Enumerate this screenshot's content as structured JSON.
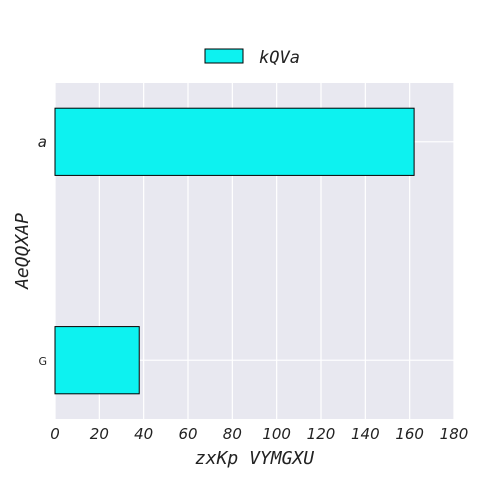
{
  "chart_data": {
    "type": "bar",
    "orientation": "horizontal",
    "categories": [
      "a",
      "G"
    ],
    "series": [
      {
        "name": "kQVa",
        "values": [
          162,
          38
        ],
        "color": "#0df2f0"
      }
    ],
    "xlabel": "zxKp   VYMGXU",
    "ylabel": "AeQQXAP",
    "xlim": [
      0,
      180
    ],
    "xticks": [
      0,
      20,
      40,
      60,
      80,
      100,
      120,
      140,
      160,
      180
    ],
    "grid": true,
    "legend_position": "top-center",
    "background": "#e8e8f0"
  }
}
